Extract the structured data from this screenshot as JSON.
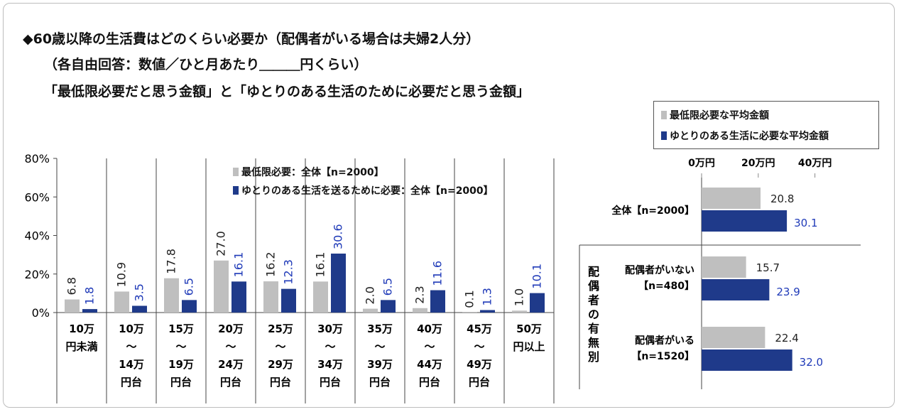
{
  "title": {
    "line1": "◆60歳以降の生活費はどのくらい必要か（配偶者がいる場合は夫婦2人分）",
    "line2": "（各自由回答：数値／ひと月あたり＿＿＿円くらい）",
    "line3": "「最低限必要だと思う金額」と「ゆとりのある生活のために必要だと思う金額」"
  },
  "colors": {
    "gray": "#bfbfbf",
    "navy": "#1f3a8a",
    "navy_text": "#1f3ab8"
  },
  "chart_data": [
    {
      "type": "bar",
      "categories": [
        [
          "10万",
          "円未満"
        ],
        [
          "10万",
          "～",
          "14万",
          "円台"
        ],
        [
          "15万",
          "～",
          "19万",
          "円台"
        ],
        [
          "20万",
          "～",
          "24万",
          "円台"
        ],
        [
          "25万",
          "～",
          "29万",
          "円台"
        ],
        [
          "30万",
          "～",
          "34万",
          "円台"
        ],
        [
          "35万",
          "～",
          "39万",
          "円台"
        ],
        [
          "40万",
          "～",
          "44万",
          "円台"
        ],
        [
          "45万",
          "～",
          "49万",
          "円台"
        ],
        [
          "50万",
          "円以上"
        ]
      ],
      "series": [
        {
          "name": "最低限必要：全体【n=2000】",
          "values": [
            6.8,
            10.9,
            17.8,
            27.0,
            16.2,
            16.1,
            2.0,
            2.3,
            0.1,
            1.0
          ],
          "labels": [
            "6.8",
            "10.9",
            "17.8",
            "27.0",
            "16.2",
            "16.1",
            "2.0",
            "2.3",
            "0.1",
            "1.0"
          ]
        },
        {
          "name": "ゆとりのある生活を送るために必要：全体【n=2000】",
          "values": [
            1.8,
            3.5,
            6.5,
            16.1,
            12.3,
            30.6,
            6.5,
            11.6,
            1.3,
            10.1
          ],
          "labels": [
            "1.8",
            "3.5",
            "6.5",
            "16.1",
            "12.3",
            "30.6",
            "6.5",
            "11.6",
            "1.3",
            "10.1"
          ]
        }
      ],
      "yticks": [
        "0%",
        "20%",
        "40%",
        "60%",
        "80%"
      ],
      "ylim": [
        0,
        80
      ],
      "legend": "top-center",
      "grid": false
    },
    {
      "type": "bar",
      "orientation": "horizontal",
      "legend_items": [
        "最低限必要な平均金額",
        "ゆとりのある生活に必要な平均金額"
      ],
      "xticks": [
        "0万円",
        "20万円",
        "40万円"
      ],
      "xlim": [
        0,
        40
      ],
      "group_label": "配偶者の有無別",
      "rows": [
        {
          "label": [
            "全体【n=2000】"
          ],
          "min": 20.8,
          "yutori": 30.1,
          "min_label": "20.8",
          "yutori_label": "30.1"
        },
        {
          "label": [
            "配偶者がいない",
            "【n=480】"
          ],
          "min": 15.7,
          "yutori": 23.9,
          "min_label": "15.7",
          "yutori_label": "23.9"
        },
        {
          "label": [
            "配偶者がいる",
            "【n=1520】"
          ],
          "min": 22.4,
          "yutori": 32.0,
          "min_label": "22.4",
          "yutori_label": "32.0"
        }
      ]
    }
  ]
}
